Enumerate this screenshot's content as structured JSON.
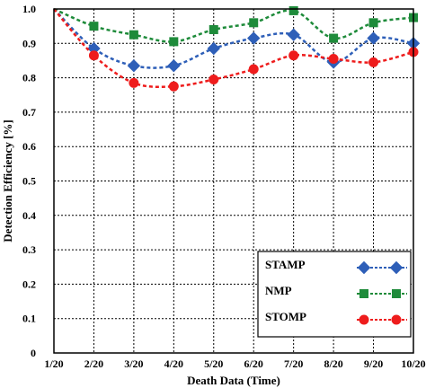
{
  "chart_data": {
    "type": "line",
    "xlabel": "Death Data (Time)",
    "ylabel": "Detection Efficiency [%]",
    "x": [
      "1/20",
      "2/20",
      "3/20",
      "4/20",
      "5/20",
      "6/20",
      "7/20",
      "8/20",
      "9/20",
      "10/20"
    ],
    "ylim": [
      0,
      1.0
    ],
    "yticks": [
      "0",
      "0.1",
      "0.2",
      "0.3",
      "0.4",
      "0.5",
      "0.6",
      "0.7",
      "0.8",
      "0.9",
      "1.0"
    ],
    "grid": true,
    "legend_position": "bottom-right",
    "series": [
      {
        "name": "STAMP",
        "color": "#2E5FB8",
        "marker": "diamond",
        "values": [
          1.0,
          0.885,
          0.835,
          0.835,
          0.885,
          0.915,
          0.925,
          0.845,
          0.915,
          0.9
        ]
      },
      {
        "name": "NMP",
        "color": "#1E8B3A",
        "marker": "square",
        "values": [
          1.0,
          0.95,
          0.925,
          0.905,
          0.94,
          0.96,
          0.995,
          0.915,
          0.96,
          0.975
        ]
      },
      {
        "name": "STOMP",
        "color": "#EE1C1C",
        "marker": "circle",
        "values": [
          1.0,
          0.865,
          0.785,
          0.775,
          0.795,
          0.825,
          0.865,
          0.855,
          0.845,
          0.875
        ]
      }
    ]
  }
}
